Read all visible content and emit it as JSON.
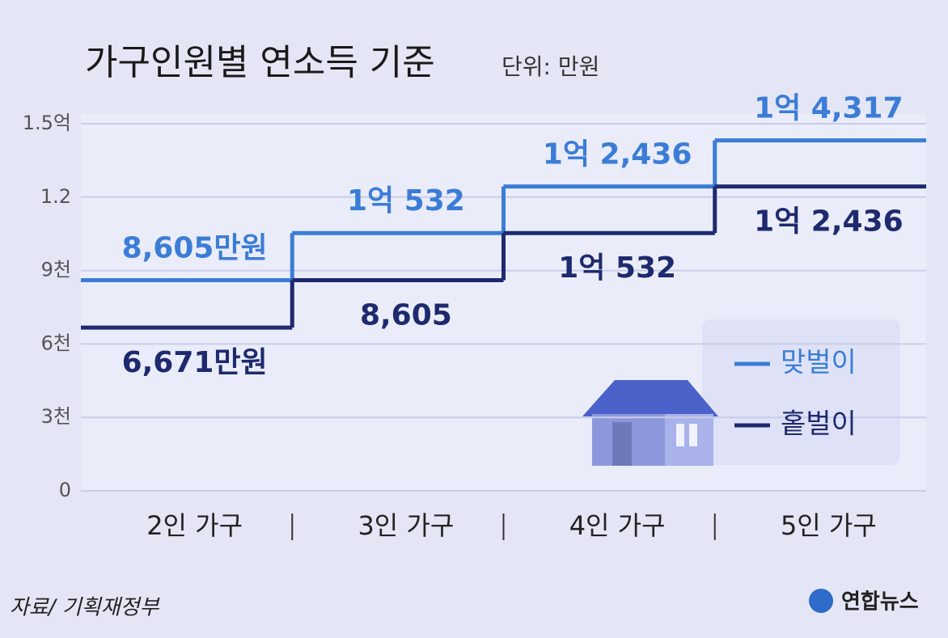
{
  "chart_data": {
    "type": "step",
    "title": "가구인원별 연소득 기준",
    "subtitle": "단위: 만원",
    "source": "자료/ 기획재정부",
    "credit": "연합뉴스",
    "categories": [
      "2인 가구",
      "3인 가구",
      "4인 가구",
      "5인 가구"
    ],
    "series": [
      {
        "name": "맞벌이",
        "color": "#3b7dd6",
        "values": [
          8605,
          10532,
          12436,
          14317
        ],
        "value_labels": [
          "8,605만원",
          "1억 532",
          "1억 2,436",
          "1억 4,317"
        ]
      },
      {
        "name": "홑벌이",
        "color": "#1e2a6e",
        "values": [
          6671,
          8605,
          10532,
          12436
        ],
        "value_labels": [
          "6,671만원",
          "8,605",
          "1억 532",
          "1억 2,436"
        ]
      }
    ],
    "ylim": [
      0,
      15000
    ],
    "yticks": [
      0,
      {
        "value": 3000,
        "label": "3천"
      },
      {
        "value": 6000,
        "label": "6천"
      },
      {
        "value": 9000,
        "label": "9천"
      },
      {
        "value": 12000,
        "label": "1.2"
      },
      {
        "value": 15000,
        "label": "1.5억"
      }
    ],
    "grid": true,
    "legend": "lower right"
  }
}
